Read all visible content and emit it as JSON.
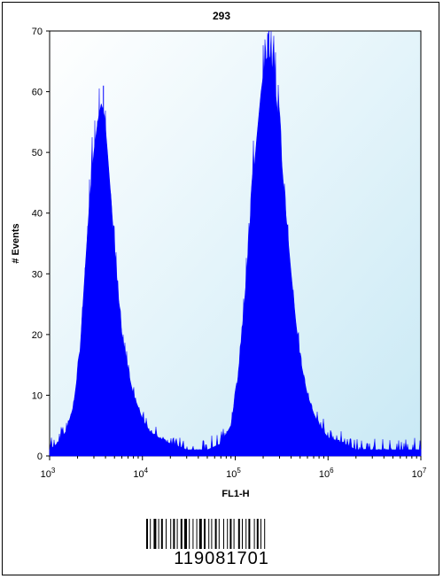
{
  "chart_data": {
    "type": "area",
    "title": "293",
    "xlabel": "FL1-H",
    "ylabel": "# Events",
    "x_scale": "log",
    "xlim": [
      1000,
      10000000
    ],
    "ylim": [
      0,
      70
    ],
    "x_ticks": [
      {
        "value": 1000,
        "base": "10",
        "exp": "3"
      },
      {
        "value": 10000,
        "base": "10",
        "exp": "4"
      },
      {
        "value": 100000,
        "base": "10",
        "exp": "5"
      },
      {
        "value": 1000000,
        "base": "10",
        "exp": "6"
      },
      {
        "value": 10000000,
        "base": "10",
        "exp": "7"
      }
    ],
    "y_ticks": [
      "0",
      "10",
      "20",
      "30",
      "40",
      "50",
      "60",
      "70"
    ],
    "fill_color": "#0000ff",
    "series": [
      {
        "peaks": [
          {
            "center": 3800,
            "max": 61
          },
          {
            "center": 230000,
            "max": 70
          }
        ],
        "x": [
          1000,
          1200,
          1500,
          1800,
          2100,
          2400,
          2700,
          3000,
          3300,
          3600,
          3900,
          4200,
          4600,
          5000,
          5500,
          6000,
          7000,
          8000,
          9000,
          10000,
          12000,
          15000,
          20000,
          30000,
          50000,
          70000,
          90000,
          110000,
          130000,
          150000,
          170000,
          190000,
          210000,
          230000,
          250000,
          280000,
          310000,
          350000,
          400000,
          450000,
          500000,
          600000,
          700000,
          800000,
          1000000,
          1500000,
          2000000,
          5000000,
          10000000
        ],
        "y": [
          1,
          2,
          4,
          8,
          16,
          30,
          42,
          50,
          55,
          58,
          56,
          50,
          42,
          34,
          26,
          20,
          14,
          10,
          8,
          6,
          4,
          3,
          2,
          1,
          1,
          2,
          5,
          14,
          28,
          42,
          52,
          60,
          65,
          66,
          64,
          58,
          50,
          40,
          30,
          22,
          16,
          10,
          7,
          5,
          3,
          2,
          1,
          1,
          1
        ]
      }
    ]
  },
  "barcode": {
    "number": "119081701"
  }
}
